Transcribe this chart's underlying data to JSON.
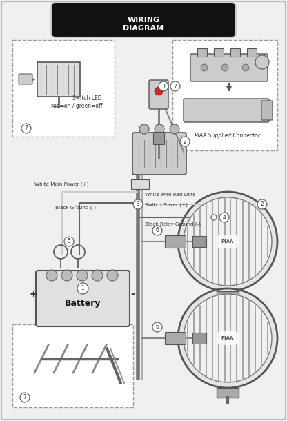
{
  "title_line1": "WIRING",
  "title_line2": "DIAGRAM",
  "labels": {
    "switch_led": "Switch LED\nred=on / green=off",
    "white_main": "White Main Power (+)",
    "black_ground": "Black Ground (-)",
    "black_relay": "Black Relay Ground (-)",
    "white_red_dots": "White with Red Dots",
    "switch_power": "Switch Power (+)",
    "piaa_connector": "PIAA Supplied Connector",
    "battery": "Battery",
    "plus": "+",
    "minus": "-"
  },
  "colors": {
    "bg": "#f0f0f0",
    "outer_border": "#aaaaaa",
    "title_bg": "#111111",
    "title_text": "#ffffff",
    "dashed_box": "#888888",
    "wire_main": "#888888",
    "wire_light": "#aaaaaa",
    "component_fill": "#dddddd",
    "component_edge": "#444444",
    "battery_fill": "#e8e8e8",
    "light_fill": "#e8e8e8",
    "text_main": "#333333",
    "relay_fill": "#cccccc"
  }
}
